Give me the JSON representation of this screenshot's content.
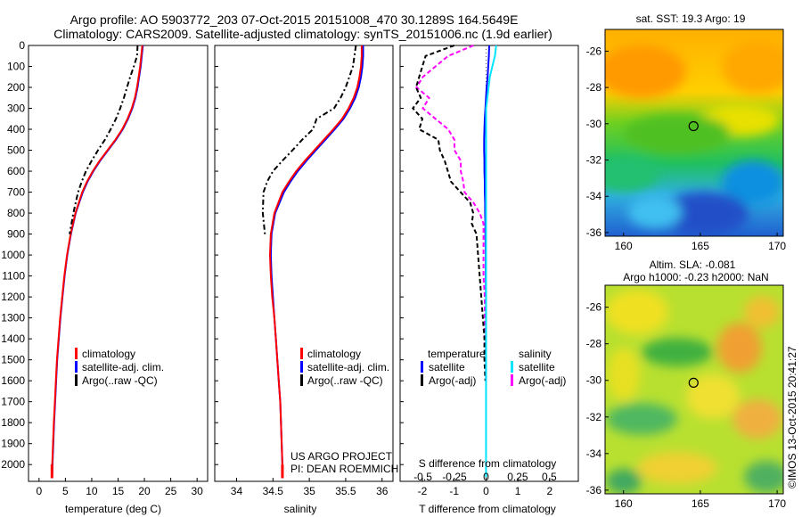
{
  "title_lines": [
    "Argo profile: AO 5903772_203 07-Oct-2015 20151008_470 30.1289S 164.5649E",
    "Climatology: CARS2009. Satellite-adjusted climatology: synTS_20151006.nc (1.9d earlier)"
  ],
  "project_note": [
    "US ARGO PROJECT",
    "PI: DEAN ROEMMICH"
  ],
  "credit": "©IMOS 13-Oct-2015 20:41:27",
  "colors": {
    "climatology": "#ff0000",
    "satellite": "#0000ff",
    "argo": "#000000",
    "satellite_salinity": "#00e5ff",
    "argo_salinity": "#ff00ff"
  },
  "chart_data": [
    {
      "type": "line",
      "xlabel": "temperature (deg C)",
      "ylabel": "",
      "xlim": [
        -2,
        32
      ],
      "ylim": [
        2080,
        0
      ],
      "xticks": [
        "0",
        "5",
        "10",
        "15",
        "20",
        "25",
        "30"
      ],
      "yticks": [
        "0",
        "100",
        "200",
        "300",
        "400",
        "500",
        "600",
        "700",
        "800",
        "900",
        "1000",
        "1100",
        "1200",
        "1300",
        "1400",
        "1500",
        "1600",
        "1700",
        "1800",
        "1900",
        "2000"
      ],
      "legend": [
        "climatology",
        "satellite-adj. clim.",
        "Argo(..raw -QC)"
      ],
      "depth": [
        0,
        50,
        100,
        150,
        200,
        250,
        300,
        350,
        400,
        450,
        500,
        550,
        600,
        650,
        700,
        800,
        900,
        1000,
        1100,
        1200,
        1300,
        1400,
        1500,
        1600,
        1700,
        1800,
        1900,
        2000,
        2050
      ],
      "series": [
        {
          "name": "climatology",
          "values": [
            19.6,
            19.4,
            19.2,
            18.9,
            18.6,
            18.2,
            17.6,
            16.8,
            15.8,
            14.5,
            13.0,
            11.5,
            10.2,
            9.1,
            8.2,
            6.9,
            6.0,
            5.3,
            4.8,
            4.4,
            4.0,
            3.7,
            3.4,
            3.2,
            3.0,
            2.8,
            2.65,
            2.5,
            2.45
          ]
        },
        {
          "name": "satellite-adj. clim.",
          "values": [
            19.7,
            19.5,
            19.3,
            19.0,
            18.7,
            18.3,
            17.7,
            16.9,
            15.9,
            14.6,
            13.1,
            11.6,
            10.3,
            9.2,
            8.3,
            6.95,
            6.05,
            5.35,
            4.85,
            4.45,
            4.05,
            3.75,
            3.45,
            3.25,
            3.05,
            2.85,
            2.7,
            2.55,
            2.5
          ]
        },
        {
          "name": "Argo(..raw -QC)",
          "values": [
            18.7,
            18.6,
            18.0,
            17.3,
            16.7,
            16.1,
            15.4,
            14.6,
            13.6,
            12.5,
            11.2,
            10.0,
            8.9,
            8.1,
            7.4,
            6.5,
            5.8
          ]
        }
      ]
    },
    {
      "type": "line",
      "xlabel": "salinity",
      "ylabel": "",
      "xlim": [
        33.7,
        36.15
      ],
      "ylim": [
        2080,
        0
      ],
      "xticks": [
        "34",
        "34.5",
        "35",
        "35.5",
        "36"
      ],
      "legend": [
        "climatology",
        "satellite-adj. clim.",
        "Argo(..raw -QC)"
      ],
      "depth": [
        0,
        50,
        100,
        150,
        200,
        250,
        300,
        350,
        400,
        450,
        500,
        550,
        600,
        650,
        700,
        800,
        900,
        1000,
        1100,
        1200,
        1300,
        1400,
        1500,
        1600,
        1700,
        1800,
        1900,
        2000,
        2050
      ],
      "series": [
        {
          "name": "climatology",
          "values": [
            35.72,
            35.72,
            35.71,
            35.69,
            35.66,
            35.61,
            35.54,
            35.45,
            35.33,
            35.2,
            35.07,
            34.94,
            34.82,
            34.72,
            34.63,
            34.52,
            34.47,
            34.46,
            34.47,
            34.49,
            34.52,
            34.54,
            34.56,
            34.58,
            34.6,
            34.61,
            34.62,
            34.63,
            34.63
          ]
        },
        {
          "name": "satellite-adj. clim.",
          "values": [
            35.74,
            35.74,
            35.73,
            35.71,
            35.68,
            35.63,
            35.56,
            35.47,
            35.35,
            35.22,
            35.09,
            34.96,
            34.84,
            34.74,
            34.65,
            34.53,
            34.48,
            34.47,
            34.48,
            34.5,
            34.52,
            34.54,
            34.56,
            34.58,
            34.6,
            34.61,
            34.62,
            34.63,
            34.63
          ]
        },
        {
          "name": "Argo(..raw -QC)",
          "values": [
            35.64,
            35.62,
            35.6,
            35.55,
            35.5,
            35.43,
            35.34,
            35.1,
            35.05,
            34.9,
            34.77,
            34.63,
            34.5,
            34.42,
            34.37,
            34.36,
            34.39
          ]
        }
      ]
    },
    {
      "type": "line",
      "xlabel": "T difference from climatology",
      "ylabel": "",
      "xlim": [
        -2.7,
        2.9
      ],
      "ylim": [
        2080,
        0
      ],
      "xticks": [
        "-2",
        "-1",
        "0",
        "1",
        "2"
      ],
      "top_xlabel": "S difference from climatology",
      "top_xticks": [
        "-0.5",
        "-0.25",
        "0",
        "0.25",
        "0.5"
      ],
      "legend_headers": [
        "temperature",
        "salinity"
      ],
      "legend": [
        "satellite",
        "Argo(-adj)",
        "satellite",
        "Argo(-adj)"
      ],
      "depth_a": [
        0,
        50,
        100,
        150,
        200,
        250,
        300,
        350,
        400,
        450,
        500,
        550,
        600,
        650,
        700,
        750,
        800,
        850,
        900,
        1000,
        1100,
        1200,
        1300,
        1400,
        1500,
        1600
      ],
      "series": [
        {
          "name": "satellite",
          "values": [
            0.1,
            0.09,
            0.07,
            0.05,
            0.02,
            0.0,
            -0.02,
            -0.04,
            -0.05,
            -0.06,
            -0.06,
            -0.05,
            -0.05,
            -0.04,
            -0.04,
            -0.03,
            -0.03,
            -0.02,
            -0.02,
            -0.01,
            -0.01,
            0.0,
            0.0,
            0.0,
            0.0,
            0.0
          ]
        },
        {
          "name": "Argo(-adj)",
          "values": [
            -1.0,
            -1.9,
            -2.0,
            -2.1,
            -2.2,
            -2.05,
            -2.3,
            -2.0,
            -2.1,
            -1.5,
            -1.45,
            -1.3,
            -1.2,
            -1.1,
            -0.8,
            -0.5,
            -0.4,
            -0.45,
            -0.3,
            -0.25,
            -0.2,
            -0.15,
            -0.1,
            -0.05,
            -0.05,
            -0.02
          ]
        },
        {
          "name": "satellite (S)",
          "values": [
            0.08,
            0.07,
            0.05,
            0.03,
            0.02,
            0.01,
            0.0,
            0.0,
            0.0,
            0.0,
            0.0,
            0.0,
            0.0,
            0.0,
            0.0,
            0.0,
            0.0,
            0.0,
            0.0,
            0.0,
            0.0,
            0.0,
            0.0,
            0.0,
            0.0,
            0.0
          ]
        },
        {
          "name": "Argo(-adj) (S)",
          "values": [
            -0.1,
            -0.3,
            -0.4,
            -0.5,
            -0.55,
            -0.45,
            -0.5,
            -0.4,
            -0.3,
            -0.25,
            -0.25,
            -0.2,
            -0.2,
            -0.18,
            -0.17,
            -0.1,
            -0.05,
            -0.02,
            -0.02,
            -0.02,
            -0.02,
            -0.01,
            -0.01,
            -0.01,
            0.0,
            0.0
          ]
        }
      ]
    },
    {
      "type": "heatmap",
      "title": "sat. SST: 19.3 Argo: 19",
      "xlim": [
        158.8,
        170.4
      ],
      "ylim": [
        -36.2,
        -24.8
      ],
      "xticks": [
        "160",
        "165",
        "170"
      ],
      "yticks": [
        "-26",
        "-28",
        "-30",
        "-32",
        "-34",
        "-36"
      ],
      "marker": [
        164.56,
        -30.13
      ]
    },
    {
      "type": "heatmap",
      "title_lines": [
        "Altim. SLA: -0.081",
        "Argo h1000: -0.23 h2000: NaN"
      ],
      "xlim": [
        158.8,
        170.4
      ],
      "ylim": [
        -36.2,
        -24.8
      ],
      "xticks": [
        "160",
        "165",
        "170"
      ],
      "yticks": [
        "-26",
        "-28",
        "-30",
        "-32",
        "-34",
        "-36"
      ],
      "marker": [
        164.56,
        -30.13
      ]
    }
  ]
}
